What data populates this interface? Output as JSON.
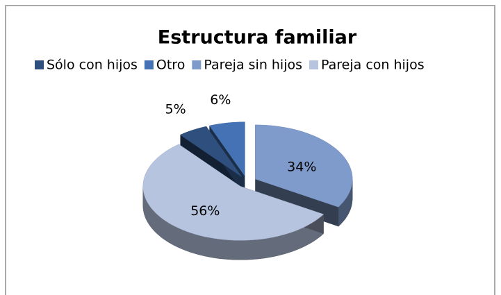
{
  "chart_data": {
    "type": "pie3d",
    "title": "Estructura familiar",
    "categories": [
      "Sólo con hijos",
      "Otro",
      "Pareja sin hijos",
      "Pareja con hijos"
    ],
    "values": [
      5,
      6,
      34,
      56
    ],
    "value_labels": [
      "5%",
      "6%",
      "34%",
      "56%"
    ],
    "colors": [
      "#2f4f7f",
      "#4472b4",
      "#7f9bcb",
      "#b6c4e0"
    ],
    "legend": "top"
  }
}
